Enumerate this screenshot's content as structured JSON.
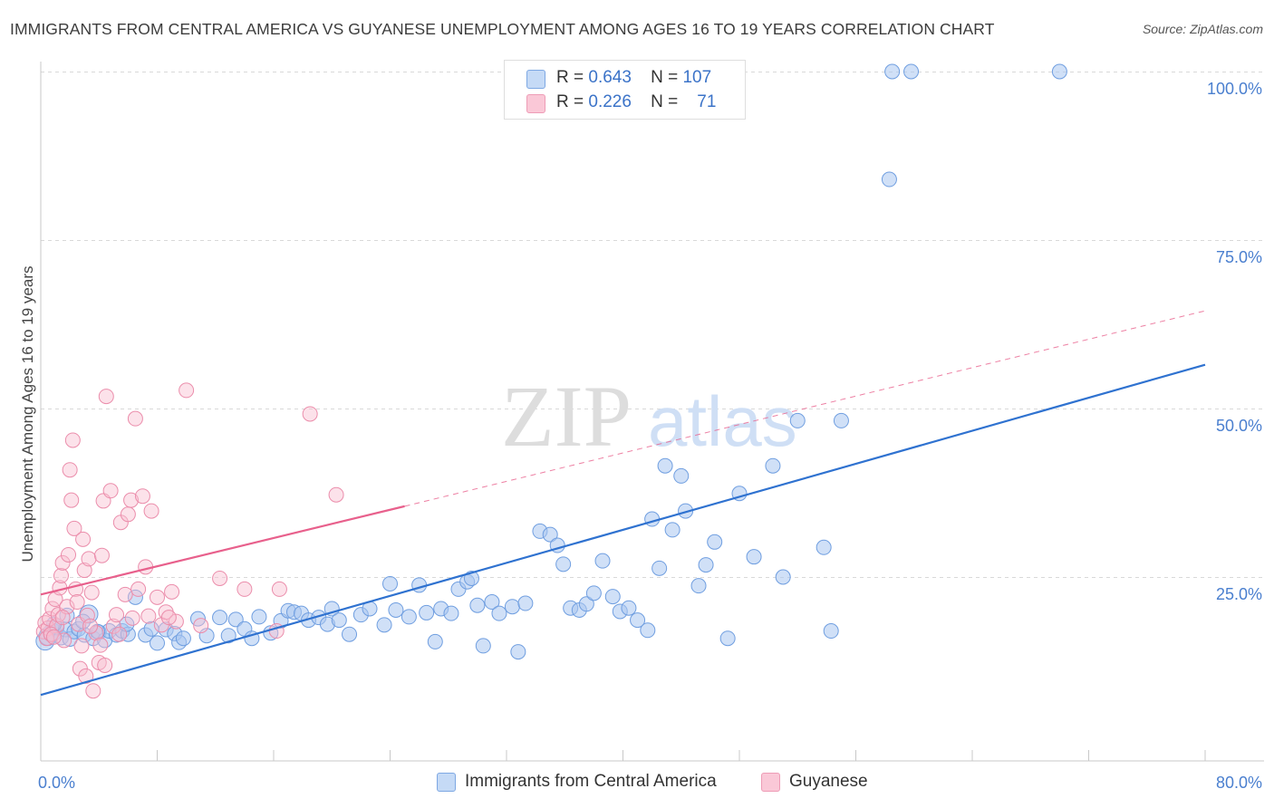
{
  "title": "IMMIGRANTS FROM CENTRAL AMERICA VS GUYANESE UNEMPLOYMENT AMONG AGES 16 TO 19 YEARS CORRELATION CHART",
  "source": "Source: ZipAtlas.com",
  "watermark": {
    "zip": "ZIP",
    "atlas": "atlas"
  },
  "legend": {
    "rows": [
      {
        "r_label": "R =",
        "r_value": "0.643",
        "n_label": "N =",
        "n_value": "107"
      },
      {
        "r_label": "R =",
        "r_value": "0.226",
        "n_label": "N =",
        "n_value": "71"
      }
    ]
  },
  "colors": {
    "blue_fill": "#a9c7f0",
    "blue_stroke": "#6f9ee0",
    "blue_line": "#2f72d0",
    "pink_fill": "#f8bfd0",
    "pink_stroke": "#eb8dab",
    "pink_line": "#e8608c",
    "grid": "#d9d9d9",
    "tick_text": "#4a7fcf"
  },
  "chart_data": {
    "type": "scatter",
    "title": "IMMIGRANTS FROM CENTRAL AMERICA VS GUYANESE UNEMPLOYMENT AMONG AGES 16 TO 19 YEARS CORRELATION CHART",
    "xlabel": "",
    "ylabel": "Unemployment Among Ages 16 to 19 years",
    "xlim": [
      0,
      80
    ],
    "ylim": [
      0,
      100
    ],
    "x_tick_labels": [
      "0.0%",
      "80.0%"
    ],
    "y_ticks": [
      25,
      50,
      75,
      100
    ],
    "y_tick_labels": [
      "25.0%",
      "50.0%",
      "75.0%",
      "100.0%"
    ],
    "grid": true,
    "legend_position": "bottom",
    "series": [
      {
        "name": "Immigrants from Central America",
        "color": "#a9c7f0",
        "trend": {
          "x": [
            0,
            80
          ],
          "y": [
            7.5,
            56.5
          ],
          "style": "solid"
        },
        "points": [
          [
            0.3,
            15.5
          ],
          [
            0.5,
            16.2
          ],
          [
            0.8,
            16.8
          ],
          [
            1.1,
            17.5
          ],
          [
            1.4,
            16.0
          ],
          [
            1.7,
            17.2
          ],
          [
            2.0,
            15.8
          ],
          [
            2.3,
            16.9
          ],
          [
            2.6,
            17.3
          ],
          [
            3.0,
            16.4
          ],
          [
            3.3,
            19.5
          ],
          [
            3.6,
            15.9
          ],
          [
            4.0,
            16.8
          ],
          [
            4.4,
            15.6
          ],
          [
            4.7,
            17.0
          ],
          [
            5.2,
            16.4
          ],
          [
            5.6,
            17.0
          ],
          [
            6.0,
            16.5
          ],
          [
            6.5,
            22.0
          ],
          [
            7.2,
            16.4
          ],
          [
            7.6,
            17.3
          ],
          [
            8.0,
            15.2
          ],
          [
            8.6,
            17.2
          ],
          [
            9.2,
            16.6
          ],
          [
            9.5,
            15.3
          ],
          [
            9.8,
            15.9
          ],
          [
            10.8,
            18.8
          ],
          [
            11.4,
            16.3
          ],
          [
            12.3,
            19.0
          ],
          [
            12.9,
            16.3
          ],
          [
            13.4,
            18.7
          ],
          [
            14.0,
            17.3
          ],
          [
            14.5,
            15.9
          ],
          [
            15.0,
            19.1
          ],
          [
            15.8,
            16.7
          ],
          [
            16.5,
            18.5
          ],
          [
            17.0,
            20.0
          ],
          [
            17.4,
            19.8
          ],
          [
            17.9,
            19.6
          ],
          [
            18.4,
            18.6
          ],
          [
            19.1,
            19.0
          ],
          [
            19.7,
            18.0
          ],
          [
            20.0,
            20.3
          ],
          [
            20.5,
            18.6
          ],
          [
            21.2,
            16.5
          ],
          [
            22.0,
            19.4
          ],
          [
            22.6,
            20.3
          ],
          [
            23.6,
            17.9
          ],
          [
            24.0,
            24.0
          ],
          [
            24.4,
            20.1
          ],
          [
            25.3,
            19.1
          ],
          [
            26.0,
            23.8
          ],
          [
            26.5,
            19.7
          ],
          [
            27.1,
            15.4
          ],
          [
            27.5,
            20.3
          ],
          [
            28.2,
            19.6
          ],
          [
            28.7,
            23.2
          ],
          [
            29.3,
            24.3
          ],
          [
            29.6,
            24.8
          ],
          [
            30.0,
            20.8
          ],
          [
            30.4,
            14.8
          ],
          [
            31.0,
            21.3
          ],
          [
            31.5,
            19.6
          ],
          [
            32.4,
            20.6
          ],
          [
            32.8,
            13.9
          ],
          [
            33.3,
            21.1
          ],
          [
            34.3,
            31.8
          ],
          [
            35.0,
            31.3
          ],
          [
            35.5,
            29.7
          ],
          [
            35.9,
            26.9
          ],
          [
            36.4,
            20.4
          ],
          [
            37.0,
            20.1
          ],
          [
            37.5,
            21.0
          ],
          [
            38.0,
            22.6
          ],
          [
            38.6,
            27.4
          ],
          [
            39.3,
            22.1
          ],
          [
            39.8,
            19.9
          ],
          [
            40.4,
            20.4
          ],
          [
            41.0,
            18.6
          ],
          [
            41.7,
            17.1
          ],
          [
            42.0,
            33.6
          ],
          [
            42.5,
            26.3
          ],
          [
            42.9,
            41.5
          ],
          [
            43.4,
            32.0
          ],
          [
            44.0,
            40.0
          ],
          [
            44.3,
            34.8
          ],
          [
            45.2,
            23.7
          ],
          [
            45.7,
            26.8
          ],
          [
            46.3,
            30.2
          ],
          [
            47.2,
            15.9
          ],
          [
            48.0,
            37.4
          ],
          [
            49.0,
            28.0
          ],
          [
            50.3,
            41.5
          ],
          [
            51.0,
            25.0
          ],
          [
            52.0,
            48.2
          ],
          [
            53.8,
            29.4
          ],
          [
            54.3,
            17.0
          ],
          [
            55.0,
            48.2
          ],
          [
            58.3,
            84.0
          ],
          [
            58.5,
            100
          ],
          [
            59.8,
            100
          ],
          [
            70.0,
            100
          ],
          [
            1.8,
            19.3
          ],
          [
            0.9,
            18.0
          ],
          [
            2.9,
            18.4
          ],
          [
            3.9,
            16.9
          ],
          [
            5.9,
            18.0
          ]
        ]
      },
      {
        "name": "Guyanese",
        "color": "#f8bfd0",
        "trend": {
          "x": [
            0,
            25
          ],
          "y": [
            22.4,
            35.5
          ],
          "style": "solid",
          "extension": {
            "x": [
              25,
              80
            ],
            "y": [
              35.5,
              64.5
            ],
            "style": "dashed"
          }
        },
        "points": [
          [
            0.2,
            16.9
          ],
          [
            0.3,
            18.2
          ],
          [
            0.5,
            17.4
          ],
          [
            0.6,
            18.8
          ],
          [
            0.8,
            20.3
          ],
          [
            1.0,
            21.7
          ],
          [
            1.1,
            17.8
          ],
          [
            1.2,
            19.4
          ],
          [
            1.3,
            23.4
          ],
          [
            1.4,
            25.2
          ],
          [
            1.5,
            27.1
          ],
          [
            1.6,
            15.6
          ],
          [
            1.8,
            20.6
          ],
          [
            1.9,
            28.3
          ],
          [
            2.0,
            40.9
          ],
          [
            2.1,
            36.4
          ],
          [
            2.2,
            45.3
          ],
          [
            2.3,
            32.2
          ],
          [
            2.4,
            23.2
          ],
          [
            2.5,
            21.3
          ],
          [
            2.6,
            18.0
          ],
          [
            2.7,
            11.4
          ],
          [
            2.9,
            30.6
          ],
          [
            3.0,
            26.0
          ],
          [
            3.2,
            19.3
          ],
          [
            3.3,
            27.7
          ],
          [
            3.5,
            22.7
          ],
          [
            3.6,
            8.1
          ],
          [
            3.8,
            16.7
          ],
          [
            4.0,
            12.3
          ],
          [
            4.2,
            28.2
          ],
          [
            4.3,
            36.3
          ],
          [
            4.5,
            51.8
          ],
          [
            4.8,
            37.8
          ],
          [
            5.0,
            17.7
          ],
          [
            5.2,
            19.4
          ],
          [
            5.5,
            33.1
          ],
          [
            5.8,
            22.4
          ],
          [
            6.0,
            34.3
          ],
          [
            6.2,
            36.4
          ],
          [
            6.5,
            48.5
          ],
          [
            6.7,
            23.2
          ],
          [
            7.0,
            37.0
          ],
          [
            7.2,
            26.5
          ],
          [
            7.6,
            34.8
          ],
          [
            8.0,
            22.0
          ],
          [
            8.3,
            17.9
          ],
          [
            8.6,
            19.8
          ],
          [
            9.0,
            22.8
          ],
          [
            9.3,
            18.4
          ],
          [
            10.0,
            52.7
          ],
          [
            11.0,
            17.8
          ],
          [
            12.3,
            24.8
          ],
          [
            14.0,
            23.2
          ],
          [
            16.2,
            17.0
          ],
          [
            16.4,
            23.2
          ],
          [
            18.5,
            49.2
          ],
          [
            20.3,
            37.2
          ],
          [
            0.4,
            15.9
          ],
          [
            0.7,
            16.5
          ],
          [
            1.5,
            19.0
          ],
          [
            2.8,
            14.8
          ],
          [
            3.1,
            10.3
          ],
          [
            3.4,
            17.7
          ],
          [
            4.1,
            14.9
          ],
          [
            4.4,
            11.9
          ],
          [
            5.4,
            16.5
          ],
          [
            6.3,
            18.9
          ],
          [
            7.4,
            19.2
          ],
          [
            8.8,
            19.0
          ],
          [
            0.9,
            16.1
          ]
        ]
      }
    ]
  },
  "bottom_legend": {
    "items": [
      {
        "label": "Immigrants from Central America"
      },
      {
        "label": "Guyanese"
      }
    ]
  }
}
